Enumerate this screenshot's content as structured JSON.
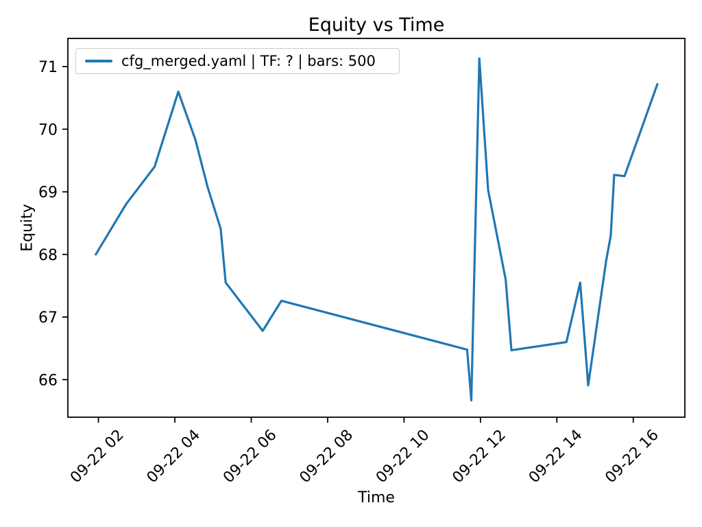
{
  "chart_data": {
    "type": "line",
    "title": "Equity vs Time",
    "xlabel": "Time",
    "ylabel": "Equity",
    "legend": [
      "cfg_merged.yaml | TF: ? | bars: 500"
    ],
    "legend_position": "upper left",
    "grid": false,
    "line_color": "#1f77b4",
    "x_units": "hour of day on 09-22",
    "xlim": [
      1.2,
      17.35
    ],
    "ylim": [
      65.4,
      71.45
    ],
    "y_ticks": [
      66,
      67,
      68,
      69,
      70,
      71
    ],
    "x_ticks": [
      {
        "hour": 2,
        "label": "09-22 02"
      },
      {
        "hour": 4,
        "label": "09-22 04"
      },
      {
        "hour": 6,
        "label": "09-22 06"
      },
      {
        "hour": 8,
        "label": "09-22 08"
      },
      {
        "hour": 10,
        "label": "09-22 10"
      },
      {
        "hour": 12,
        "label": "09-22 12"
      },
      {
        "hour": 14,
        "label": "09-22 14"
      },
      {
        "hour": 16,
        "label": "09-22 16"
      }
    ],
    "series": [
      {
        "name": "cfg_merged.yaml | TF: ? | bars: 500",
        "color": "#1f77b4",
        "points": [
          [
            1.93,
            68.0
          ],
          [
            2.72,
            68.8
          ],
          [
            3.47,
            69.4
          ],
          [
            4.09,
            70.6
          ],
          [
            4.54,
            69.83
          ],
          [
            4.86,
            69.07
          ],
          [
            5.2,
            68.41
          ],
          [
            5.33,
            67.55
          ],
          [
            6.3,
            66.78
          ],
          [
            6.79,
            67.26
          ],
          [
            11.65,
            66.48
          ],
          [
            11.76,
            65.67
          ],
          [
            11.97,
            71.13
          ],
          [
            12.2,
            69.03
          ],
          [
            12.66,
            67.6
          ],
          [
            12.81,
            66.47
          ],
          [
            14.25,
            66.6
          ],
          [
            14.61,
            67.55
          ],
          [
            14.82,
            65.91
          ],
          [
            15.29,
            67.9
          ],
          [
            15.41,
            68.3
          ],
          [
            15.5,
            69.27
          ],
          [
            15.77,
            69.25
          ],
          [
            16.63,
            70.72
          ]
        ]
      }
    ]
  }
}
